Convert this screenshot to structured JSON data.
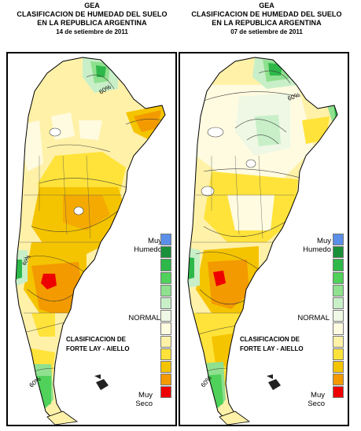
{
  "left_panel": {
    "org": "GEA",
    "title_line1": "CLASIFICACION DE HUMEDAD DEL SUELO",
    "title_line2": "EN LA REPUBLICA ARGENTINA",
    "date": "14 de setiembre de 2011",
    "contour_labels": [
      "60%",
      "60%",
      "60%"
    ]
  },
  "right_panel": {
    "org": "GEA",
    "title_line1": "CLASIFICACION DE HUMEDAD DEL SUELO",
    "title_line2": "EN LA REPUBLICA ARGENTINA",
    "date": "07 de setiembre de 2011",
    "contour_labels": [
      "60%",
      "60%"
    ]
  },
  "legend": {
    "very_wet_line1": "Muy",
    "very_wet_line2": "Humedo",
    "normal": "NORMAL",
    "very_dry_line1": "Muy",
    "very_dry_line2": "Seco",
    "classification_line1": "CLASIFICACION DE",
    "classification_line2": "FORTE LAY - AIELLO",
    "scale_colors": [
      "#5b8fe8",
      "#1a8f3a",
      "#2fb84a",
      "#4fd15a",
      "#8fe08f",
      "#c8efc8",
      "#eef8e4",
      "#fffbe0",
      "#fff1a8",
      "#ffe33a",
      "#f5c400",
      "#f39a00",
      "#ee0000"
    ]
  }
}
